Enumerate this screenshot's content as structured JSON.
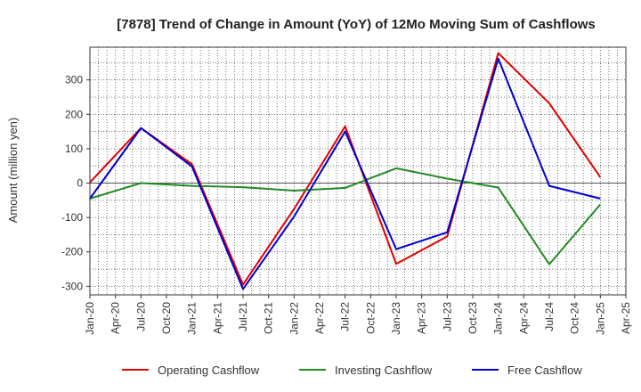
{
  "chart_data": {
    "type": "line",
    "title": "[7878]  Trend of Change in Amount (YoY) of 12Mo Moving Sum of Cashflows",
    "ylabel": "Amount (million yen)",
    "xlabel": "",
    "ylim": [
      -325,
      395
    ],
    "yticks": [
      300,
      200,
      100,
      0,
      -100,
      -200,
      -300
    ],
    "xtick_labels": [
      "Jan-20",
      "Apr-20",
      "Jul-20",
      "Oct-20",
      "Jan-21",
      "Apr-21",
      "Jul-21",
      "Oct-21",
      "Jan-22",
      "Apr-22",
      "Jul-22",
      "Oct-22",
      "Jan-23",
      "Apr-23",
      "Jul-23",
      "Oct-23",
      "Jan-24",
      "Apr-24",
      "Jul-24",
      "Oct-24",
      "Jan-25",
      "Apr-25"
    ],
    "x": [
      "Jan-20",
      "Jul-20",
      "Jan-21",
      "Jul-21",
      "Jan-22",
      "Jul-22",
      "Jan-23",
      "Jul-23",
      "Jan-24",
      "Jul-24",
      "Jan-25"
    ],
    "grid": true,
    "legend_position": "bottom",
    "series": [
      {
        "name": "Operating Cashflow",
        "color": "#e00000",
        "values": [
          2,
          160,
          55,
          -295,
          -75,
          165,
          -235,
          -155,
          378,
          232,
          17
        ]
      },
      {
        "name": "Investing Cashflow",
        "color": "#228b22",
        "values": [
          -45,
          0,
          -8,
          -12,
          -22,
          -14,
          43,
          13,
          -13,
          -236,
          -62
        ]
      },
      {
        "name": "Free Cashflow",
        "color": "#0000cc",
        "values": [
          -45,
          160,
          48,
          -308,
          -97,
          150,
          -192,
          -143,
          362,
          -8,
          -45
        ]
      }
    ]
  }
}
